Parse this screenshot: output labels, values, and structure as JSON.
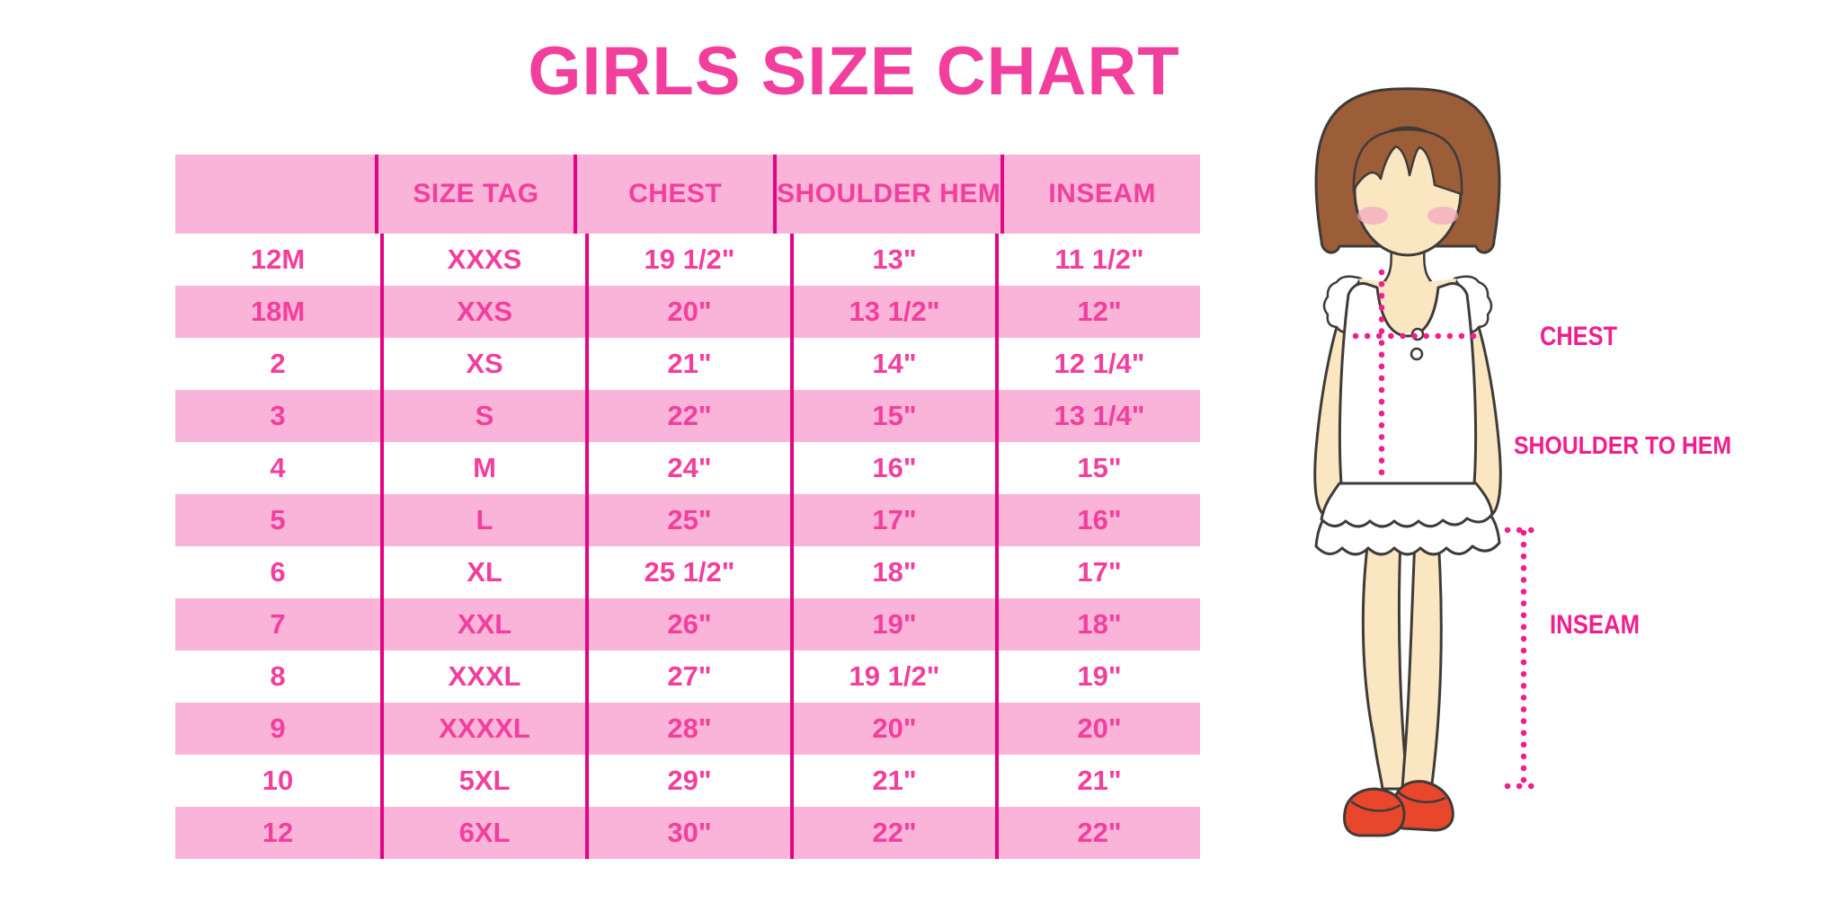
{
  "chart_data": {
    "type": "table",
    "title": "GIRLS SIZE CHART",
    "columns": [
      "",
      "SIZE TAG",
      "CHEST",
      "SHOULDER HEM",
      "INSEAM"
    ],
    "rows": [
      [
        "12M",
        "XXXS",
        "19 1/2\"",
        "13\"",
        "11 1/2\""
      ],
      [
        "18M",
        "XXS",
        "20\"",
        "13 1/2\"",
        "12\""
      ],
      [
        "2",
        "XS",
        "21\"",
        "14\"",
        "12 1/4\""
      ],
      [
        "3",
        "S",
        "22\"",
        "15\"",
        "13 1/4\""
      ],
      [
        "4",
        "M",
        "24\"",
        "16\"",
        "15\""
      ],
      [
        "5",
        "L",
        "25\"",
        "17\"",
        "16\""
      ],
      [
        "6",
        "XL",
        "25 1/2\"",
        "18\"",
        "17\""
      ],
      [
        "7",
        "XXL",
        "26\"",
        "19\"",
        "18\""
      ],
      [
        "8",
        "XXXL",
        "27\"",
        "19 1/2\"",
        "19\""
      ],
      [
        "9",
        "XXXXL",
        "28\"",
        "20\"",
        "20\""
      ],
      [
        "10",
        "5XL",
        "29\"",
        "21\"",
        "21\""
      ],
      [
        "12",
        "6XL",
        "30\"",
        "22\"",
        "22\""
      ]
    ],
    "layout": {
      "striping": "alternating white and pink rows",
      "column_dividers": true,
      "outer_border": false
    }
  },
  "diagram": {
    "description": "cartoon girl with measurement guide lines",
    "labels": {
      "chest": "CHEST",
      "shoulder_to_hem": "SHOULDER TO HEM",
      "inseam": "INSEAM"
    }
  },
  "colors": {
    "title_pink": "#F23F9D",
    "row_pink": "#FAB4DA",
    "divider_magenta": "#E10583",
    "cell_text_pink": "#F23F9D",
    "label_magenta": "#F01E8E",
    "dotted_line_magenta": "#F01E8E",
    "hair_brown": "#9C5E38",
    "skin": "#FAE6C1",
    "blush": "#F4A8BE",
    "shoe_red": "#E8472B",
    "outline": "#3F3B39"
  }
}
